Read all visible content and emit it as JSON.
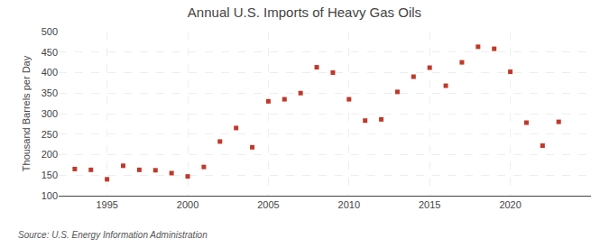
{
  "chart_data": {
    "type": "scatter",
    "title": "Annual U.S. Imports of Heavy Gas Oils",
    "ylabel": "Thousand Barrels per Day",
    "source": "Source: U.S. Energy Information Administration",
    "x": [
      1993,
      1994,
      1995,
      1996,
      1997,
      1998,
      1999,
      2000,
      2001,
      2002,
      2003,
      2004,
      2005,
      2006,
      2007,
      2008,
      2009,
      2010,
      2011,
      2012,
      2013,
      2014,
      2015,
      2016,
      2017,
      2018,
      2019,
      2020,
      2021,
      2022,
      2023
    ],
    "values": [
      165,
      163,
      140,
      173,
      163,
      162,
      155,
      147,
      170,
      232,
      265,
      218,
      330,
      335,
      350,
      413,
      400,
      335,
      283,
      286,
      353,
      390,
      412,
      368,
      425,
      463,
      458,
      402,
      278,
      222,
      280
    ],
    "color": "#c0392b",
    "marker": "square",
    "xlim": [
      1992,
      2025
    ],
    "ylim": [
      100,
      500
    ],
    "xticks": [
      1995,
      2000,
      2005,
      2010,
      2015,
      2020
    ],
    "yticks": [
      100,
      150,
      200,
      250,
      300,
      350,
      400,
      450,
      500
    ],
    "grid": true
  }
}
